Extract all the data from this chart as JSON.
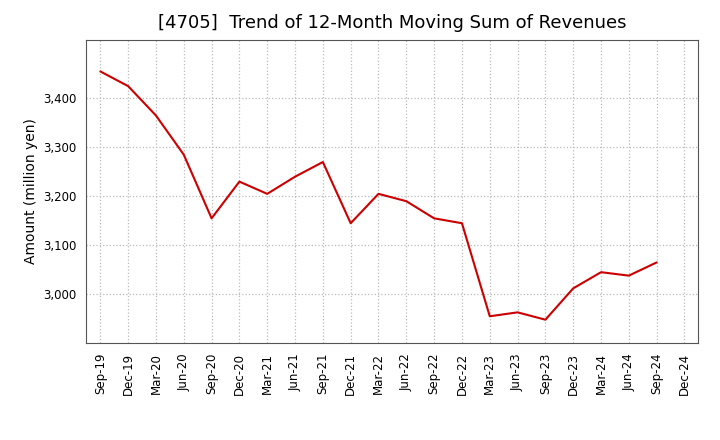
{
  "title": "[4705]  Trend of 12-Month Moving Sum of Revenues",
  "ylabel": "Amount (million yen)",
  "x_labels": [
    "Sep-19",
    "Dec-19",
    "Mar-20",
    "Jun-20",
    "Sep-20",
    "Dec-20",
    "Mar-21",
    "Jun-21",
    "Sep-21",
    "Dec-21",
    "Mar-22",
    "Jun-22",
    "Sep-22",
    "Dec-22",
    "Mar-23",
    "Jun-23",
    "Sep-23",
    "Dec-23",
    "Mar-24",
    "Jun-24",
    "Sep-24",
    "Dec-24"
  ],
  "values": [
    3455,
    3425,
    3365,
    3285,
    3155,
    3230,
    3205,
    3240,
    3270,
    3145,
    3205,
    3190,
    3155,
    3145,
    2955,
    2963,
    2948,
    3012,
    3045,
    3038,
    3065,
    null
  ],
  "line_color": "#cc0000",
  "background_color": "#ffffff",
  "plot_bg_color": "#ffffff",
  "ylim_min": 2900,
  "ylim_max": 3520,
  "yticks": [
    3000,
    3100,
    3200,
    3300,
    3400
  ],
  "grid_color": "#bbbbbb",
  "title_fontsize": 13,
  "axis_label_fontsize": 10,
  "tick_fontsize": 8.5
}
